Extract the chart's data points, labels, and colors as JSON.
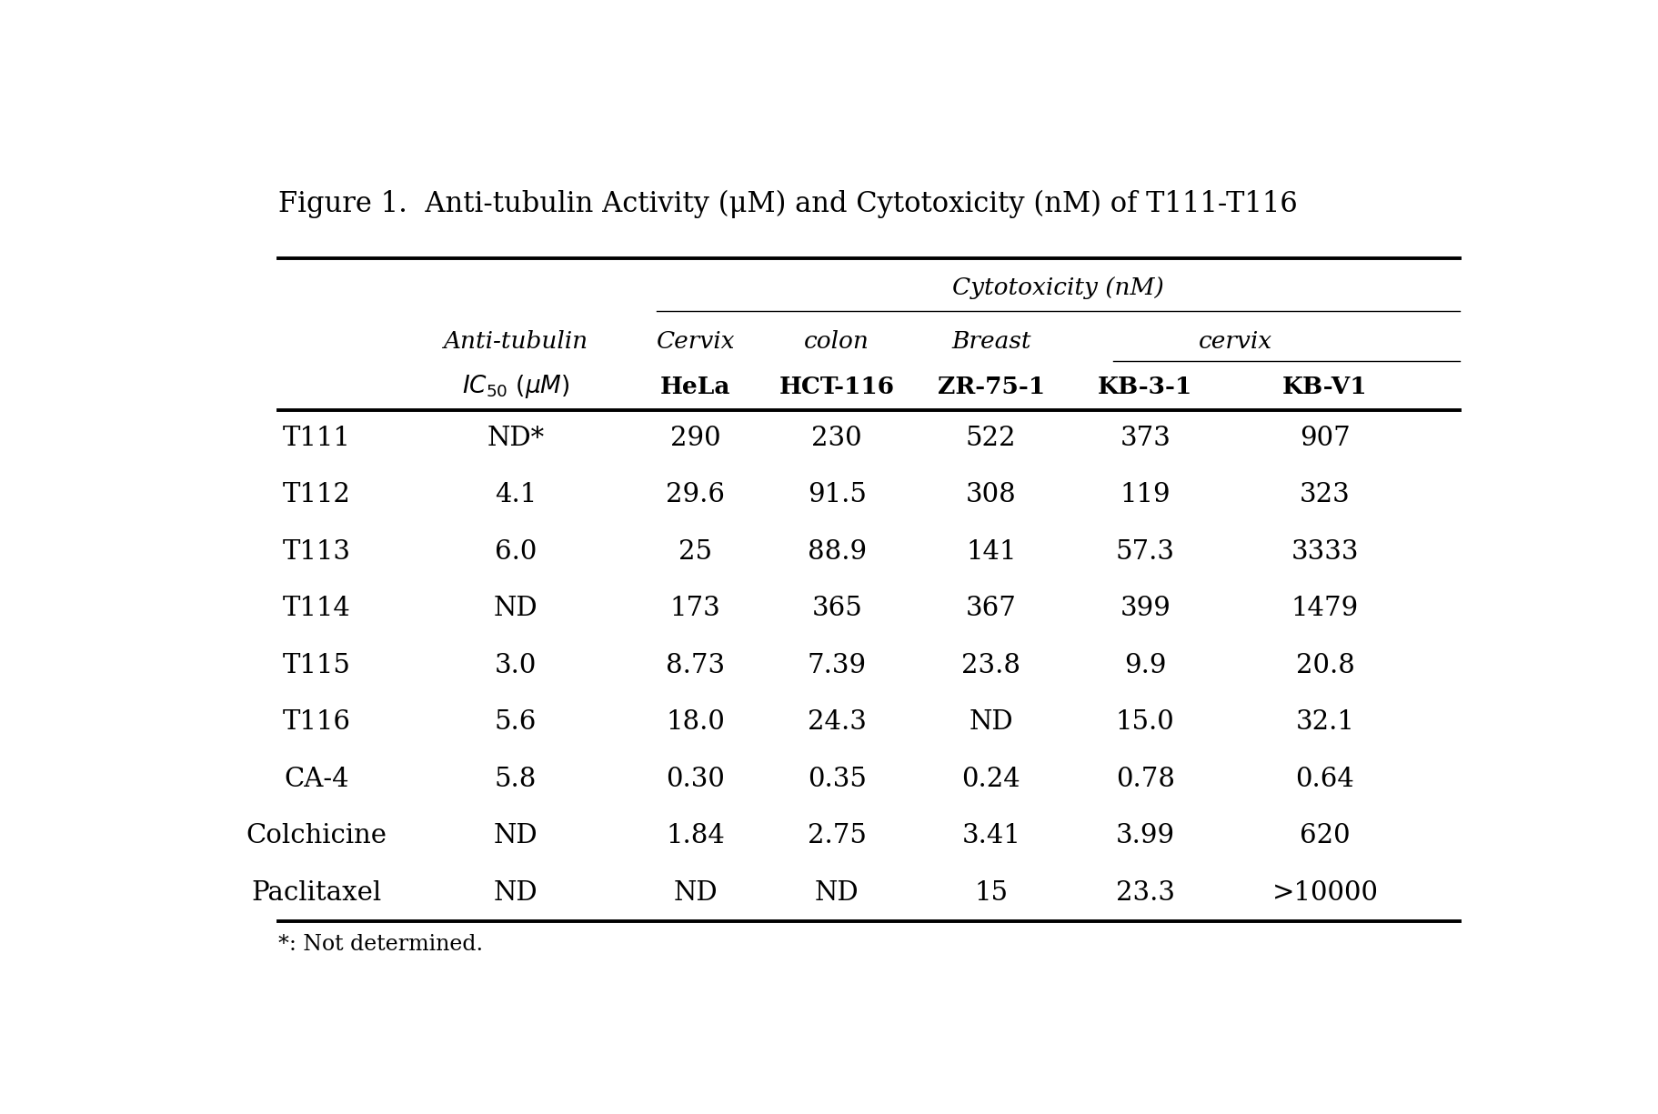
{
  "title": "Figure 1.  Anti-tubulin Activity (μM) and Cytotoxicity (nM) of T111-T116",
  "footnote": "*: Not determined.",
  "rows": [
    [
      "T111",
      "ND*",
      "290",
      "230",
      "522",
      "373",
      "907"
    ],
    [
      "T112",
      "4.1",
      "29.6",
      "91.5",
      "308",
      "119",
      "323"
    ],
    [
      "T113",
      "6.0",
      "25",
      "88.9",
      "141",
      "57.3",
      "3333"
    ],
    [
      "T114",
      "ND",
      "173",
      "365",
      "367",
      "399",
      "1479"
    ],
    [
      "T115",
      "3.0",
      "8.73",
      "7.39",
      "23.8",
      "9.9",
      "20.8"
    ],
    [
      "T116",
      "5.6",
      "18.0",
      "24.3",
      "ND",
      "15.0",
      "32.1"
    ],
    [
      "CA-4",
      "5.8",
      "0.30",
      "0.35",
      "0.24",
      "0.78",
      "0.64"
    ],
    [
      "Colchicine",
      "ND",
      "1.84",
      "2.75",
      "3.41",
      "3.99",
      "620"
    ],
    [
      "Paclitaxel",
      "ND",
      "ND",
      "ND",
      "15",
      "23.3",
      ">10000"
    ]
  ],
  "background_color": "#ffffff",
  "text_color": "#000000",
  "font_family": "DejaVu Serif"
}
